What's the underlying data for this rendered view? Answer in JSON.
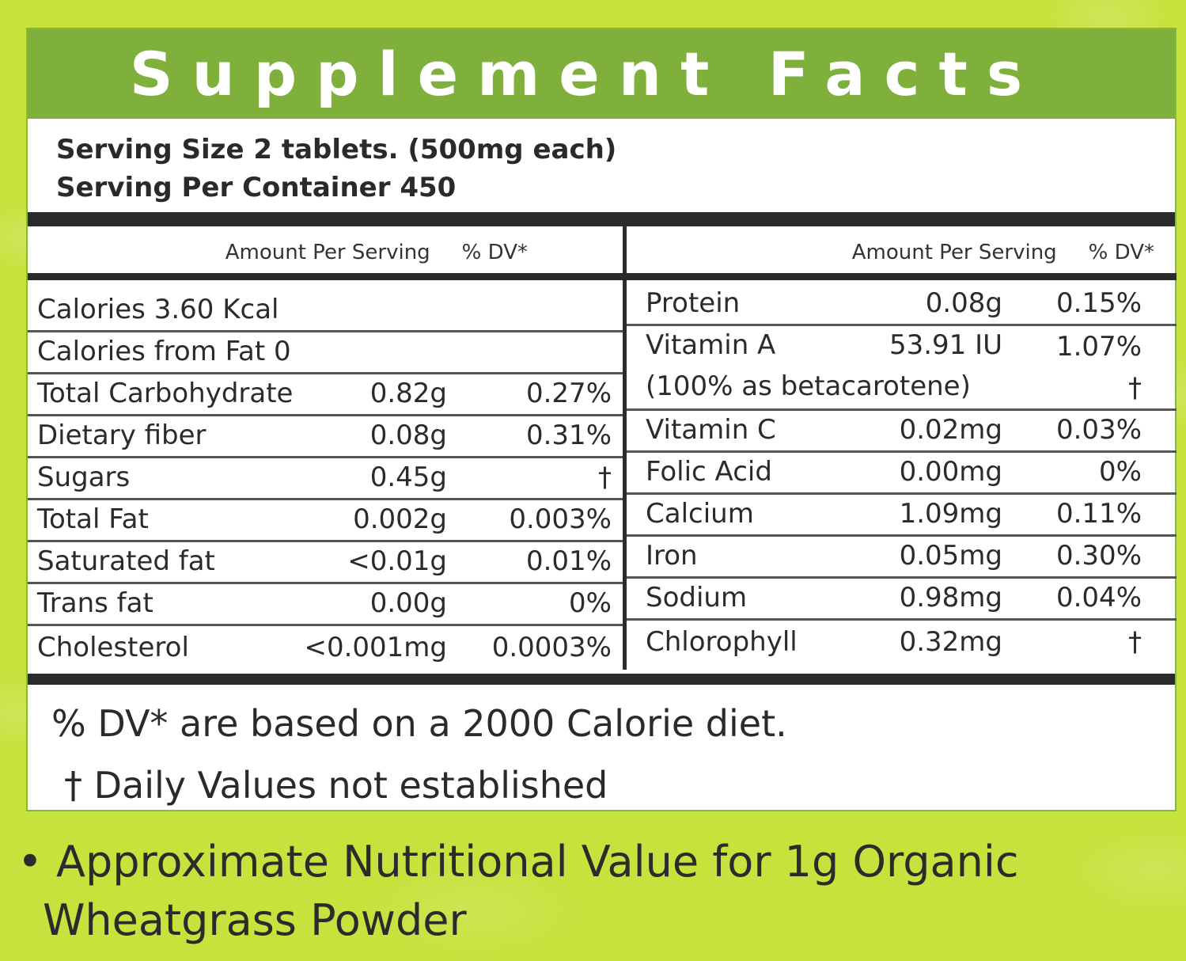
{
  "header": {
    "title": "Supplement Facts"
  },
  "serving": {
    "size": "Serving Size 2 tablets. (500mg each)",
    "per_container": "Serving Per Container 450"
  },
  "columns": {
    "amount_label": "Amount Per Serving",
    "dv_label": "% DV*"
  },
  "left_rows": [
    {
      "name": "Calories 3.60 Kcal",
      "amount": "",
      "dv": ""
    },
    {
      "name": "Calories from Fat 0",
      "amount": "",
      "dv": ""
    },
    {
      "name": "Total Carbohydrate",
      "amount": "0.82g",
      "dv": "0.27%"
    },
    {
      "name": "Dietary fiber",
      "amount": "0.08g",
      "dv": "0.31%"
    },
    {
      "name": "Sugars",
      "amount": "0.45g",
      "dv": "†"
    },
    {
      "name": "Total Fat",
      "amount": "0.002g",
      "dv": "0.003%"
    },
    {
      "name": "Saturated fat",
      "amount": "<0.01g",
      "dv": "0.01%"
    },
    {
      "name": "Trans fat",
      "amount": "0.00g",
      "dv": "0%"
    },
    {
      "name": "Cholesterol",
      "amount": "<0.001mg",
      "dv": "0.0003%"
    }
  ],
  "right_rows": [
    {
      "name": "Protein",
      "amount": "0.08g",
      "dv": "0.15%"
    },
    {
      "name": "Vitamin A",
      "amount": "53.91 IU",
      "dv": "1.07%",
      "sub": "(100% as betacarotene)",
      "sub_dv": "†"
    },
    {
      "name": "Vitamin C",
      "amount": "0.02mg",
      "dv": "0.03%"
    },
    {
      "name": "Folic Acid",
      "amount": "0.00mg",
      "dv": "0%"
    },
    {
      "name": "Calcium",
      "amount": "1.09mg",
      "dv": "0.11%"
    },
    {
      "name": "Iron",
      "amount": "0.05mg",
      "dv": "0.30%"
    },
    {
      "name": "Sodium",
      "amount": "0.98mg",
      "dv": "0.04%"
    },
    {
      "name": "Chlorophyll",
      "amount": "0.32mg",
      "dv": "†"
    }
  ],
  "footnotes": {
    "dv_basis": "% DV* are based on a 2000 Calorie diet.",
    "dagger": "† Daily Values not established"
  },
  "bottom_note": {
    "line1": "• Approximate Nutritional Value for 1g Organic",
    "line2": "Wheatgrass Powder"
  },
  "colors": {
    "background": "#c6e23c",
    "header_green": "#7fb03b",
    "text": "#2b2b2b"
  }
}
